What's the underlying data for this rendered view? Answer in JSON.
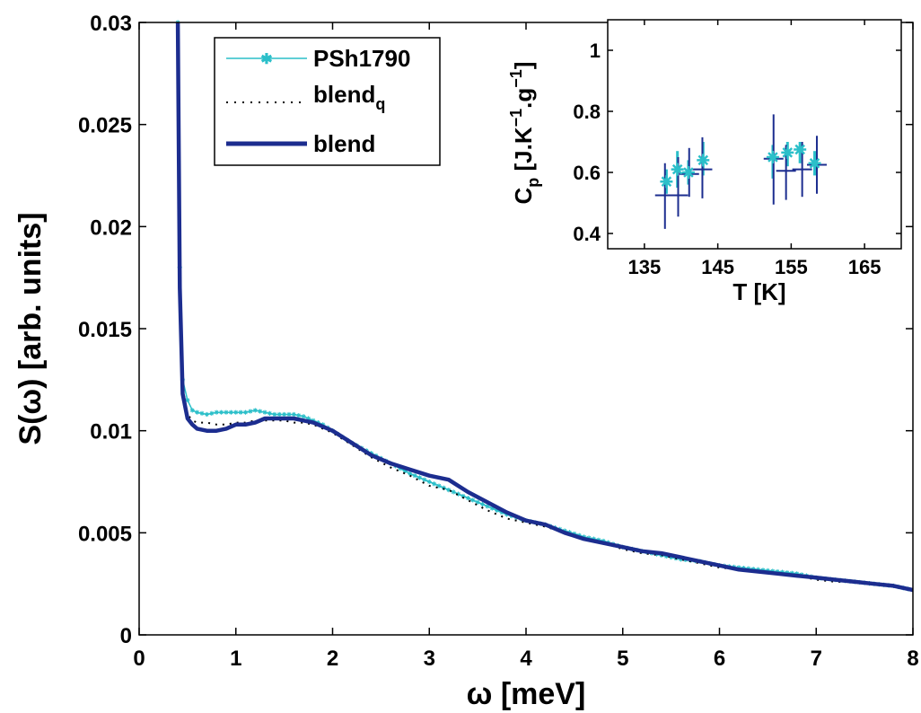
{
  "chart_data": [
    {
      "type": "line",
      "xlabel": "ω [meV]",
      "ylabel": "S(ω) [arb. units]",
      "xlim": [
        0,
        8
      ],
      "ylim": [
        0,
        0.03
      ],
      "xticks": [
        "0",
        "1",
        "2",
        "3",
        "4",
        "5",
        "6",
        "7",
        "8"
      ],
      "yticks": [
        "0",
        "0.005",
        "0.01",
        "0.015",
        "0.02",
        "0.025",
        "0.03"
      ],
      "grid": false,
      "legend_position": "top-left",
      "series": [
        {
          "name": "PSh1790",
          "color": "#2bbfc9",
          "style": "thin line with star markers",
          "x": [
            0.4,
            0.42,
            0.45,
            0.5,
            0.55,
            0.6,
            0.7,
            0.8,
            0.9,
            1.0,
            1.1,
            1.2,
            1.3,
            1.4,
            1.5,
            1.6,
            1.7,
            1.8,
            1.9,
            2.0,
            2.2,
            2.4,
            2.6,
            2.8,
            3.0,
            3.2,
            3.4,
            3.6,
            3.8,
            4.0,
            4.2,
            4.4,
            4.6,
            4.8,
            5.0,
            5.2,
            5.4,
            5.6,
            5.8,
            6.0,
            6.2,
            6.4,
            6.6,
            6.8,
            7.0,
            7.2,
            7.4,
            7.6,
            7.8,
            8.0
          ],
          "y": [
            0.03,
            0.018,
            0.0125,
            0.0115,
            0.011,
            0.0109,
            0.0108,
            0.0109,
            0.0109,
            0.0109,
            0.0109,
            0.011,
            0.0109,
            0.0108,
            0.0108,
            0.0108,
            0.0107,
            0.0105,
            0.0103,
            0.01,
            0.0094,
            0.0089,
            0.0084,
            0.0079,
            0.0075,
            0.0071,
            0.0067,
            0.0063,
            0.0059,
            0.0056,
            0.0054,
            0.0051,
            0.0048,
            0.0046,
            0.0043,
            0.0041,
            0.0039,
            0.0037,
            0.0036,
            0.0034,
            0.0033,
            0.0032,
            0.0031,
            0.003,
            0.0028,
            0.0027,
            0.0026,
            0.0025,
            0.0024,
            0.0022
          ]
        },
        {
          "name": "blend_q",
          "color": "#000000",
          "style": "dotted",
          "x": [
            0.4,
            0.42,
            0.45,
            0.5,
            0.55,
            0.6,
            0.7,
            0.8,
            0.9,
            1.0,
            1.1,
            1.2,
            1.3,
            1.4,
            1.5,
            1.6,
            1.7,
            1.8,
            1.9,
            2.0,
            2.2,
            2.4,
            2.6,
            2.8,
            3.0,
            3.2,
            3.4,
            3.6,
            3.8,
            4.0,
            4.2,
            4.4,
            4.6,
            4.8,
            5.0,
            5.2,
            5.4,
            5.6,
            5.8,
            6.0,
            6.2,
            6.4,
            6.6,
            6.8,
            7.0,
            7.2,
            7.4,
            7.6,
            7.8,
            8.0
          ],
          "y": [
            0.03,
            0.0175,
            0.0121,
            0.0108,
            0.0105,
            0.0104,
            0.0104,
            0.0103,
            0.0103,
            0.0104,
            0.0104,
            0.0105,
            0.0105,
            0.0105,
            0.0105,
            0.0104,
            0.0104,
            0.0103,
            0.0101,
            0.0099,
            0.0093,
            0.0087,
            0.0082,
            0.0078,
            0.0073,
            0.0071,
            0.0066,
            0.0061,
            0.0057,
            0.0055,
            0.0053,
            0.005,
            0.0047,
            0.0045,
            0.0042,
            0.004,
            0.0039,
            0.0037,
            0.0035,
            0.0033,
            0.0032,
            0.0031,
            0.003,
            0.0029,
            0.0027,
            0.0026,
            0.0026,
            0.0025,
            0.0024,
            0.0022
          ]
        },
        {
          "name": "blend",
          "color": "#1c2d8f",
          "style": "thick line",
          "x": [
            0.4,
            0.42,
            0.45,
            0.5,
            0.55,
            0.6,
            0.7,
            0.8,
            0.9,
            1.0,
            1.1,
            1.2,
            1.3,
            1.4,
            1.5,
            1.6,
            1.7,
            1.8,
            1.9,
            2.0,
            2.2,
            2.4,
            2.6,
            2.8,
            3.0,
            3.2,
            3.4,
            3.6,
            3.8,
            4.0,
            4.2,
            4.4,
            4.6,
            4.8,
            5.0,
            5.2,
            5.4,
            5.6,
            5.8,
            6.0,
            6.2,
            6.4,
            6.6,
            6.8,
            7.0,
            7.2,
            7.4,
            7.6,
            7.8,
            8.0
          ],
          "y": [
            0.03,
            0.017,
            0.0118,
            0.0106,
            0.0103,
            0.0101,
            0.01,
            0.01,
            0.0101,
            0.0103,
            0.0103,
            0.0104,
            0.0106,
            0.0106,
            0.0106,
            0.0106,
            0.0105,
            0.0104,
            0.0102,
            0.01,
            0.0094,
            0.0088,
            0.0084,
            0.0081,
            0.0078,
            0.0076,
            0.007,
            0.0065,
            0.006,
            0.0056,
            0.0054,
            0.005,
            0.0047,
            0.0045,
            0.0043,
            0.0041,
            0.004,
            0.0038,
            0.0036,
            0.0034,
            0.0032,
            0.0031,
            0.003,
            0.0029,
            0.0028,
            0.0027,
            0.0026,
            0.0025,
            0.0024,
            0.0022
          ]
        }
      ],
      "legend": {
        "entries": [
          {
            "label": "PSh1790",
            "subscript": ""
          },
          {
            "label": "blend",
            "subscript": "q"
          },
          {
            "label": "blend",
            "subscript": ""
          }
        ]
      }
    },
    {
      "type": "scatter",
      "inset": true,
      "xlabel": "T [K]",
      "ylabel_parts": {
        "c": "C",
        "c_sub": "p",
        "b1": " [J.K",
        "sup1": "−1",
        "b2": ".g",
        "sup2": "−1",
        "b3": "]"
      },
      "xlim": [
        130,
        170
      ],
      "ylim": [
        0.35,
        1.1
      ],
      "xticks": [
        "135",
        "145",
        "155",
        "165"
      ],
      "yticks": [
        "0.4",
        "0.6",
        "0.8",
        "1"
      ],
      "series": [
        {
          "name": "stars",
          "color": "#2bbfc9",
          "marker": "star",
          "x": [
            138,
            139.5,
            141,
            143,
            152.5,
            154.5,
            156.2,
            158.2
          ],
          "y": [
            0.57,
            0.61,
            0.6,
            0.64,
            0.65,
            0.665,
            0.675,
            0.63
          ],
          "err_low": [
            0.53,
            0.55,
            0.56,
            0.59,
            0.58,
            0.62,
            0.63,
            0.59
          ],
          "err_high": [
            0.61,
            0.67,
            0.64,
            0.7,
            0.69,
            0.7,
            0.7,
            0.67
          ]
        },
        {
          "name": "crosses",
          "color": "#1c2d8f",
          "marker": "plus",
          "x": [
            137.8,
            139.6,
            141.1,
            142.9,
            152.6,
            154.3,
            156.5,
            158.5
          ],
          "y": [
            0.525,
            0.525,
            0.595,
            0.61,
            0.645,
            0.605,
            0.61,
            0.625
          ],
          "err_low": [
            0.415,
            0.455,
            0.52,
            0.515,
            0.495,
            0.51,
            0.52,
            0.53
          ],
          "err_high": [
            0.63,
            0.65,
            0.68,
            0.715,
            0.79,
            0.69,
            0.7,
            0.72
          ]
        }
      ]
    }
  ]
}
